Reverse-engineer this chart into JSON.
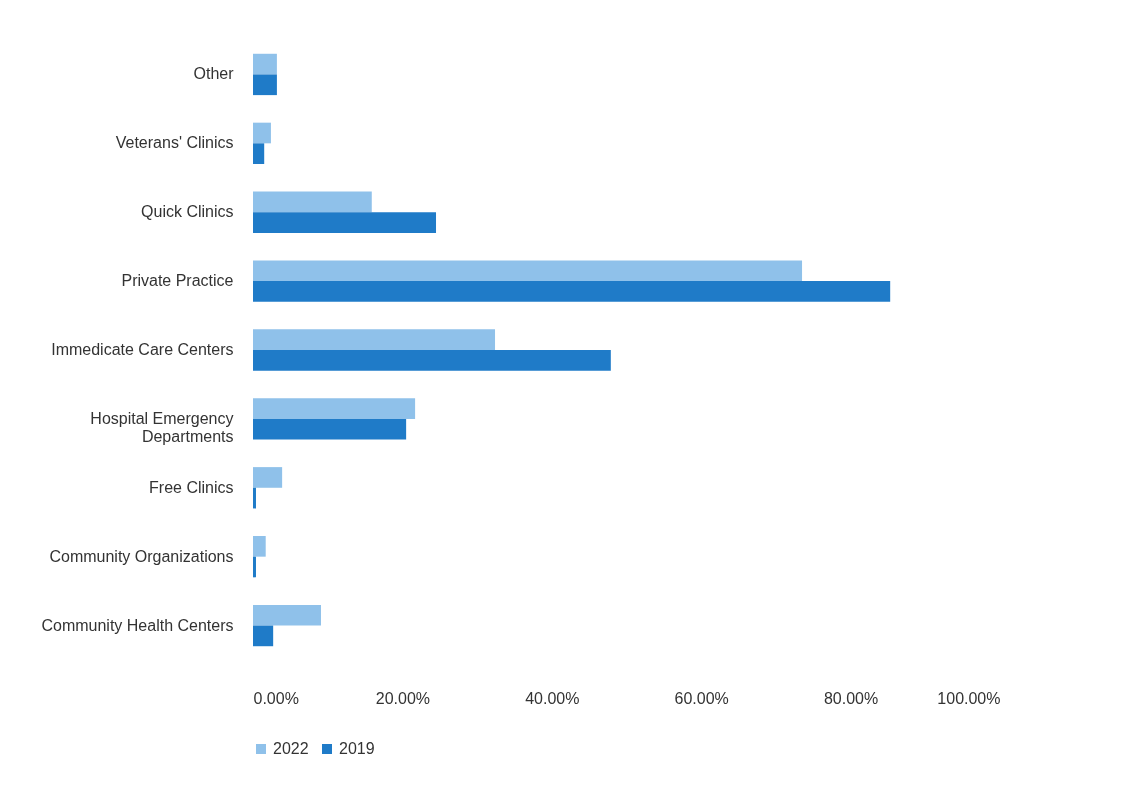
{
  "chart_data": {
    "type": "bar",
    "orientation": "horizontal",
    "categories": [
      "Other",
      "Veterans' Clinics",
      "Quick Clinics",
      "Private Practice",
      "Immedicate Care Centers",
      "Hospital Emergency Departments",
      "Free Clinics",
      "Community Organizations",
      "Community Health Centers"
    ],
    "series": [
      {
        "name": "2022",
        "color": "#8fc1ea",
        "values": [
          3.2,
          2.4,
          15.9,
          73.5,
          32.4,
          21.7,
          3.9,
          1.7,
          9.1
        ]
      },
      {
        "name": "2019",
        "color": "#1f7bc8",
        "values": [
          3.2,
          1.5,
          24.5,
          85.3,
          47.9,
          20.5,
          0.4,
          0.4,
          2.7
        ]
      }
    ],
    "xlim": [
      0,
      100
    ],
    "xticks": [
      {
        "value": 0,
        "label": "0.00%"
      },
      {
        "value": 20,
        "label": "20.00%"
      },
      {
        "value": 40,
        "label": "40.00%"
      },
      {
        "value": 60,
        "label": "60.00%"
      },
      {
        "value": 80,
        "label": "80.00%"
      },
      {
        "value": 100,
        "label": "100.00%"
      }
    ],
    "grid": false,
    "legend": "bottom"
  }
}
